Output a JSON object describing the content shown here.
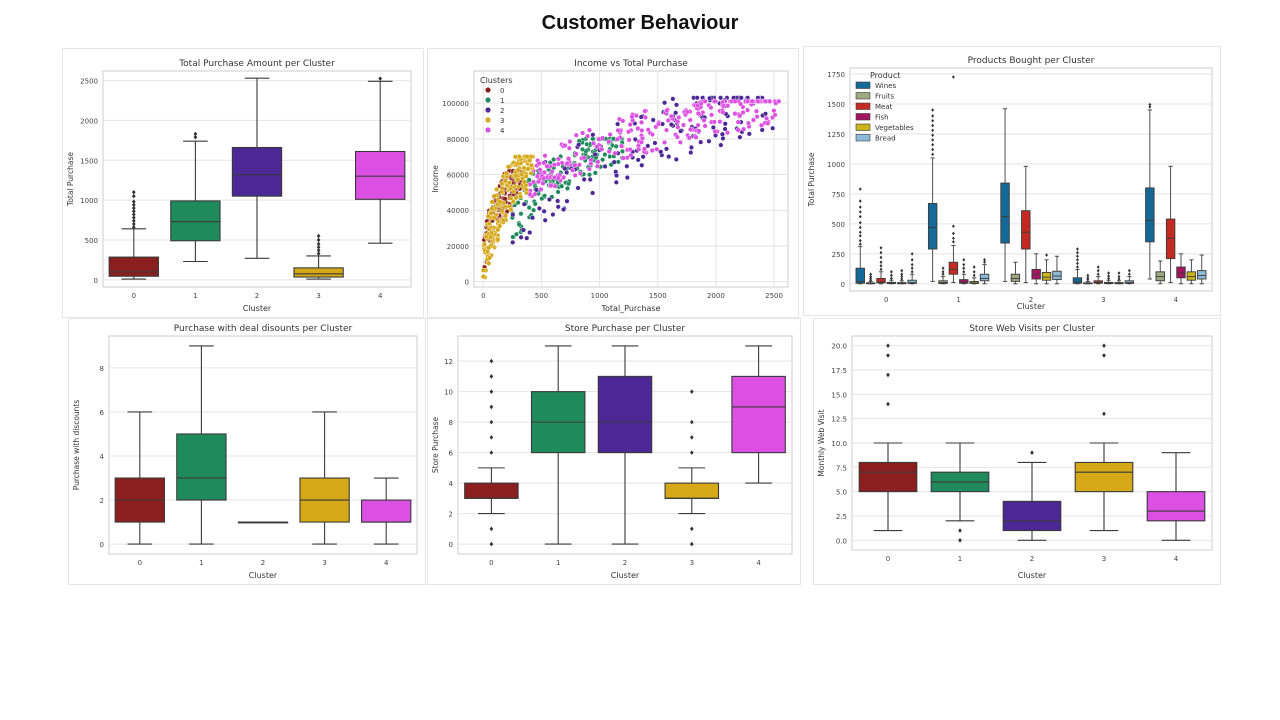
{
  "page": {
    "title": "Customer Behaviour"
  },
  "cluster_colors": [
    "#8b1e1e",
    "#1f8a5b",
    "#4b2896",
    "#d4a816",
    "#dc4fe3"
  ],
  "chart_data": [
    {
      "id": "total_purchase_cluster",
      "type": "box",
      "title": "Total Purchase Amount per Cluster",
      "xlabel": "Cluster",
      "ylabel": "Total Purchase",
      "categories": [
        "0",
        "1",
        "2",
        "3",
        "4"
      ],
      "ylim": [
        -90,
        2620
      ],
      "yticks": [
        0,
        500,
        1000,
        1500,
        2000,
        2500
      ],
      "grid": true,
      "boxes": [
        {
          "min": 10,
          "q1": 45,
          "median": 100,
          "q3": 285,
          "max": 640,
          "outliers": [
            660,
            700,
            740,
            780,
            820,
            860,
            900,
            940,
            980,
            1050,
            1100
          ]
        },
        {
          "min": 230,
          "q1": 490,
          "median": 730,
          "q3": 990,
          "max": 1740,
          "outliers": [
            1790,
            1830
          ]
        },
        {
          "min": 270,
          "q1": 1050,
          "median": 1320,
          "q3": 1660,
          "max": 2530,
          "outliers": []
        },
        {
          "min": 10,
          "q1": 35,
          "median": 75,
          "q3": 150,
          "max": 300,
          "outliers": [
            330,
            370,
            410,
            450,
            500,
            550
          ]
        },
        {
          "min": 460,
          "q1": 1010,
          "median": 1300,
          "q3": 1610,
          "max": 2490,
          "outliers": [
            2525
          ]
        }
      ]
    },
    {
      "id": "income_vs_total_purchase",
      "type": "scatter",
      "title": "Income vs Total Purchase",
      "xlabel": "Total_Purchase",
      "ylabel": "Income",
      "xlim": [
        -80,
        2620
      ],
      "ylim": [
        -3000,
        118000
      ],
      "xticks": [
        0,
        500,
        1000,
        1500,
        2000,
        2500
      ],
      "yticks": [
        0,
        20000,
        40000,
        60000,
        80000,
        100000
      ],
      "grid": true,
      "legend": {
        "title": "Clusters",
        "labels": [
          "0",
          "1",
          "2",
          "3",
          "4"
        ],
        "placement": "top-left"
      },
      "clusters": [
        {
          "name": "0",
          "x_range": [
            5,
            320
          ],
          "y_range": [
            8000,
            62000
          ],
          "count": 150
        },
        {
          "name": "1",
          "x_range": [
            250,
            1200
          ],
          "y_range": [
            25000,
            80000
          ],
          "count": 150
        },
        {
          "name": "2",
          "x_range": [
            250,
            2500
          ],
          "y_range": [
            22000,
            103000
          ],
          "count": 140
        },
        {
          "name": "3",
          "x_range": [
            0,
            430
          ],
          "y_range": [
            2000,
            70000
          ],
          "count": 200
        },
        {
          "name": "4",
          "x_range": [
            400,
            2550
          ],
          "y_range": [
            48000,
            101000
          ],
          "count": 260
        }
      ]
    },
    {
      "id": "products_bought_cluster",
      "type": "grouped_box",
      "title": "Products Bought per Cluster",
      "xlabel": "Cluster",
      "ylabel": "Total Purchase",
      "categories": [
        "0",
        "1",
        "2",
        "3",
        "4"
      ],
      "ylim": [
        -60,
        1800
      ],
      "yticks": [
        0,
        250,
        500,
        750,
        1000,
        1250,
        1500,
        1750
      ],
      "grid": true,
      "legend": {
        "title": "Product",
        "placement": "top-left"
      },
      "series": [
        {
          "name": "Wines",
          "color": "#146996",
          "boxes": [
            {
              "min": 0,
              "q1": 5,
              "median": 20,
              "q3": 130,
              "max": 310,
              "outliers": [
                330,
                360,
                400,
                430,
                470,
                510,
                560,
                600,
                640,
                690,
                790
              ]
            },
            {
              "min": 20,
              "q1": 290,
              "median": 470,
              "q3": 670,
              "max": 1050,
              "outliers": [
                1080,
                1120,
                1160,
                1200,
                1240,
                1280,
                1320,
                1360,
                1400,
                1450
              ]
            },
            {
              "min": 20,
              "q1": 340,
              "median": 560,
              "q3": 840,
              "max": 1460,
              "outliers": []
            },
            {
              "min": 0,
              "q1": 5,
              "median": 15,
              "q3": 50,
              "max": 120,
              "outliers": [
                140,
                170,
                200,
                230,
                260,
                290
              ]
            },
            {
              "min": 40,
              "q1": 350,
              "median": 530,
              "q3": 800,
              "max": 1450,
              "outliers": [
                1475,
                1495
              ]
            }
          ]
        },
        {
          "name": "Fruits",
          "color": "#9fa882",
          "boxes": [
            {
              "min": 0,
              "q1": 1,
              "median": 3,
              "q3": 8,
              "max": 20,
              "outliers": [
                30,
                45,
                60,
                80
              ]
            },
            {
              "min": 0,
              "q1": 3,
              "median": 10,
              "q3": 25,
              "max": 60,
              "outliers": [
                80,
                100,
                130
              ]
            },
            {
              "min": 0,
              "q1": 20,
              "median": 45,
              "q3": 80,
              "max": 180,
              "outliers": []
            },
            {
              "min": 0,
              "q1": 1,
              "median": 3,
              "q3": 8,
              "max": 20,
              "outliers": [
                35,
                50,
                70
              ]
            },
            {
              "min": 0,
              "q1": 25,
              "median": 60,
              "q3": 100,
              "max": 190,
              "outliers": []
            }
          ]
        },
        {
          "name": "Meat",
          "color": "#c42a22",
          "boxes": [
            {
              "min": 0,
              "q1": 8,
              "median": 15,
              "q3": 45,
              "max": 100,
              "outliers": [
                120,
                150,
                180,
                220,
                260,
                300
              ]
            },
            {
              "min": 10,
              "q1": 80,
              "median": 120,
              "q3": 180,
              "max": 320,
              "outliers": [
                350,
                380,
                420,
                480,
                1725
              ]
            },
            {
              "min": 10,
              "q1": 290,
              "median": 430,
              "q3": 610,
              "max": 980,
              "outliers": []
            },
            {
              "min": 0,
              "q1": 6,
              "median": 12,
              "q3": 25,
              "max": 60,
              "outliers": [
                80,
                110,
                140
              ]
            },
            {
              "min": 10,
              "q1": 210,
              "median": 380,
              "q3": 540,
              "max": 980,
              "outliers": []
            }
          ]
        },
        {
          "name": "Fish",
          "color": "#a3155e",
          "boxes": [
            {
              "min": 0,
              "q1": 2,
              "median": 4,
              "q3": 12,
              "max": 30,
              "outliers": [
                45,
                70,
                100
              ]
            },
            {
              "min": 0,
              "q1": 5,
              "median": 15,
              "q3": 35,
              "max": 80,
              "outliers": [
                100,
                130,
                160,
                200
              ]
            },
            {
              "min": 0,
              "q1": 40,
              "median": 80,
              "q3": 120,
              "max": 250,
              "outliers": []
            },
            {
              "min": 0,
              "q1": 2,
              "median": 4,
              "q3": 12,
              "max": 30,
              "outliers": [
                45,
                65,
                90
              ]
            },
            {
              "min": 0,
              "q1": 50,
              "median": 90,
              "q3": 140,
              "max": 250,
              "outliers": []
            }
          ]
        },
        {
          "name": "Vegetables",
          "color": "#c9b51a",
          "boxes": [
            {
              "min": 0,
              "q1": 1,
              "median": 3,
              "q3": 10,
              "max": 25,
              "outliers": [
                40,
                60,
                80,
                110
              ]
            },
            {
              "min": 0,
              "q1": 3,
              "median": 8,
              "q3": 20,
              "max": 50,
              "outliers": [
                70,
                100,
                140
              ]
            },
            {
              "min": 0,
              "q1": 30,
              "median": 55,
              "q3": 95,
              "max": 200,
              "outliers": [
                240
              ]
            },
            {
              "min": 0,
              "q1": 1,
              "median": 3,
              "q3": 10,
              "max": 25,
              "outliers": [
                40,
                60,
                90
              ]
            },
            {
              "min": 0,
              "q1": 30,
              "median": 60,
              "q3": 100,
              "max": 200,
              "outliers": []
            }
          ]
        },
        {
          "name": "Bread",
          "color": "#8bbad8",
          "boxes": [
            {
              "min": 0,
              "q1": 4,
              "median": 10,
              "q3": 30,
              "max": 80,
              "outliers": [
                100,
                130,
                160,
                200,
                250
              ]
            },
            {
              "min": 0,
              "q1": 25,
              "median": 45,
              "q3": 80,
              "max": 160,
              "outliers": [
                180,
                200
              ]
            },
            {
              "min": 0,
              "q1": 35,
              "median": 65,
              "q3": 105,
              "max": 230,
              "outliers": []
            },
            {
              "min": 0,
              "q1": 4,
              "median": 10,
              "q3": 25,
              "max": 60,
              "outliers": [
                80,
                110
              ]
            },
            {
              "min": 0,
              "q1": 40,
              "median": 70,
              "q3": 110,
              "max": 240,
              "outliers": []
            }
          ]
        }
      ]
    },
    {
      "id": "deal_discounts_cluster",
      "type": "box",
      "title": "Purchase with deal disounts per Cluster",
      "xlabel": "Cluster",
      "ylabel": "Purchase with discounts",
      "categories": [
        "0",
        "1",
        "2",
        "3",
        "4"
      ],
      "ylim": [
        -0.45,
        9.45
      ],
      "yticks": [
        0,
        2,
        4,
        6,
        8
      ],
      "grid": true,
      "boxes": [
        {
          "min": 0,
          "q1": 1,
          "median": 2,
          "q3": 3,
          "max": 6,
          "outliers": []
        },
        {
          "min": 0,
          "q1": 2,
          "median": 3,
          "q3": 5,
          "max": 9,
          "outliers": []
        },
        {
          "min": 1,
          "q1": 1,
          "median": 1,
          "q3": 1,
          "max": 1,
          "outliers": []
        },
        {
          "min": 0,
          "q1": 1,
          "median": 2,
          "q3": 3,
          "max": 6,
          "outliers": []
        },
        {
          "min": 0,
          "q1": 1,
          "median": 1,
          "q3": 2,
          "max": 3,
          "outliers": []
        }
      ]
    },
    {
      "id": "store_purchase_cluster",
      "type": "box",
      "title": "Store Purchase per Cluster",
      "xlabel": "Cluster",
      "ylabel": "Store Purchase",
      "categories": [
        "0",
        "1",
        "2",
        "3",
        "4"
      ],
      "ylim": [
        -0.65,
        13.65
      ],
      "yticks": [
        0,
        2,
        4,
        6,
        8,
        10,
        12
      ],
      "grid": true,
      "boxes": [
        {
          "min": 2,
          "q1": 3,
          "median": 3,
          "q3": 4,
          "max": 5,
          "outliers": [
            0,
            1,
            6,
            7,
            8,
            9,
            10,
            11,
            12
          ]
        },
        {
          "min": 0,
          "q1": 6,
          "median": 8,
          "q3": 10,
          "max": 13,
          "outliers": []
        },
        {
          "min": 0,
          "q1": 6,
          "median": 8,
          "q3": 11,
          "max": 13,
          "outliers": []
        },
        {
          "min": 2,
          "q1": 3,
          "median": 3,
          "q3": 4,
          "max": 5,
          "outliers": [
            0,
            1,
            6,
            7,
            8,
            10
          ]
        },
        {
          "min": 4,
          "q1": 6,
          "median": 9,
          "q3": 11,
          "max": 13,
          "outliers": []
        }
      ]
    },
    {
      "id": "web_visits_cluster",
      "type": "box",
      "title": "Store Web Visits per Cluster",
      "xlabel": "Cluster",
      "ylabel": "Monthly Web Visit",
      "categories": [
        "0",
        "1",
        "2",
        "3",
        "4"
      ],
      "ylim": [
        -1.0,
        21.0
      ],
      "yticks": [
        "0.0",
        "2.5",
        "5.0",
        "7.5",
        "10.0",
        "12.5",
        "15.0",
        "17.5",
        "20.0"
      ],
      "grid": true,
      "boxes": [
        {
          "min": 1,
          "q1": 5,
          "median": 7,
          "q3": 8,
          "max": 10,
          "outliers": [
            14,
            17,
            19,
            20
          ]
        },
        {
          "min": 2,
          "q1": 5,
          "median": 6,
          "q3": 7,
          "max": 10,
          "outliers": [
            0,
            1
          ]
        },
        {
          "min": 0,
          "q1": 1,
          "median": 2,
          "q3": 4,
          "max": 8,
          "outliers": [
            9
          ]
        },
        {
          "min": 1,
          "q1": 5,
          "median": 7,
          "q3": 8,
          "max": 10,
          "outliers": [
            13,
            19,
            20
          ]
        },
        {
          "min": 0,
          "q1": 2,
          "median": 3,
          "q3": 5,
          "max": 9,
          "outliers": []
        }
      ]
    }
  ]
}
